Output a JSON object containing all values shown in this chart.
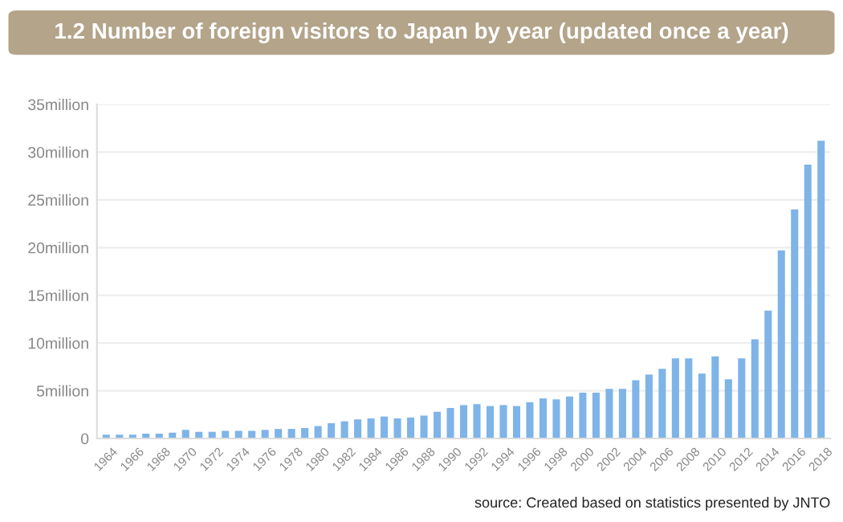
{
  "chart_data": {
    "type": "bar",
    "title": "1.2 Number of foreign visitors to Japan by year (updated once a year)",
    "categories": [
      "1964",
      null,
      "1966",
      null,
      "1968",
      null,
      "1970",
      null,
      "1972",
      null,
      "1974",
      null,
      "1976",
      null,
      "1978",
      null,
      "1980",
      null,
      "1982",
      null,
      "1984",
      null,
      "1986",
      null,
      "1988",
      null,
      "1990",
      null,
      "1992",
      null,
      "1994",
      null,
      "1996",
      null,
      "1998",
      null,
      "2000",
      null,
      "2002",
      null,
      "2004",
      null,
      "2006",
      null,
      "2008",
      null,
      "2010",
      null,
      "2012",
      null,
      "2014",
      null,
      "2016",
      null,
      "2018"
    ],
    "values": [
      0.4,
      0.4,
      0.4,
      0.5,
      0.5,
      0.6,
      0.9,
      0.7,
      0.7,
      0.8,
      0.8,
      0.8,
      0.9,
      1.0,
      1.0,
      1.1,
      1.3,
      1.6,
      1.8,
      2.0,
      2.1,
      2.3,
      2.1,
      2.2,
      2.4,
      2.8,
      3.2,
      3.5,
      3.6,
      3.4,
      3.5,
      3.4,
      3.8,
      4.2,
      4.1,
      4.4,
      4.8,
      4.8,
      5.2,
      5.2,
      6.1,
      6.7,
      7.3,
      8.4,
      8.4,
      6.8,
      8.6,
      6.2,
      8.4,
      10.4,
      13.4,
      19.7,
      24.0,
      28.7,
      31.2
    ],
    "color": "#7eb4e8",
    "ylim": [
      0,
      35
    ],
    "yticks": [
      0,
      {
        "value": 5,
        "label": "5million"
      },
      {
        "value": 10,
        "label": "10million"
      },
      {
        "value": 15,
        "label": "15million"
      },
      {
        "value": 20,
        "label": "20million"
      },
      {
        "value": 25,
        "label": "25million"
      },
      {
        "value": 30,
        "label": "30million"
      },
      {
        "value": 35,
        "label": "35million"
      }
    ],
    "grid": "y",
    "annotations": [
      "source: Created based on statistics presented by JNTO"
    ]
  }
}
